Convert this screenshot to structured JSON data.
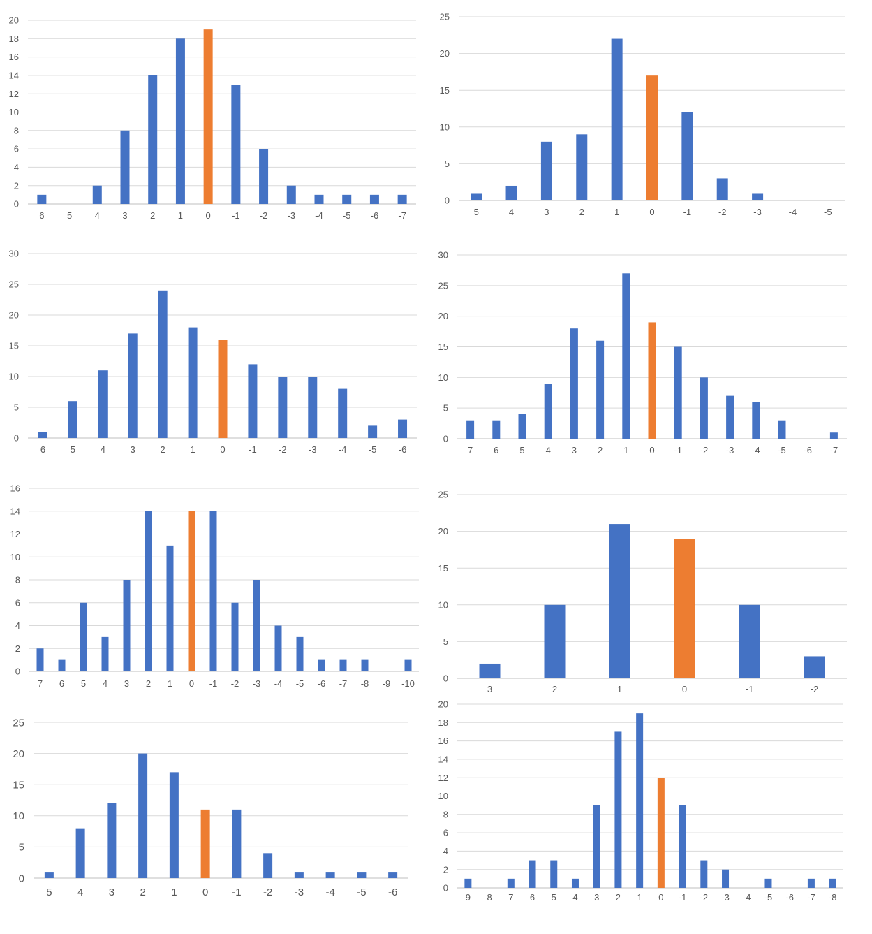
{
  "colors": {
    "normal": "#4472c4",
    "highlight": "#ed7d31"
  },
  "chart_data": [
    {
      "type": "bar",
      "categories": [
        "6",
        "5",
        "4",
        "3",
        "2",
        "1",
        "0",
        "-1",
        "-2",
        "-3",
        "-4",
        "-5",
        "-6",
        "-7"
      ],
      "values": [
        1,
        0,
        2,
        8,
        14,
        18,
        19,
        13,
        6,
        2,
        1,
        1,
        1,
        1
      ],
      "highlight_category": "0",
      "ylim": [
        0,
        20
      ],
      "yticks": [
        0,
        2,
        4,
        6,
        8,
        10,
        12,
        14,
        16,
        18,
        20
      ],
      "grid": true
    },
    {
      "type": "bar",
      "categories": [
        "5",
        "4",
        "3",
        "2",
        "1",
        "0",
        "-1",
        "-2",
        "-3",
        "-4",
        "-5"
      ],
      "values": [
        1,
        2,
        8,
        9,
        22,
        17,
        12,
        3,
        1,
        0,
        0
      ],
      "highlight_category": "0",
      "ylim": [
        0,
        25
      ],
      "yticks": [
        0,
        5,
        10,
        15,
        20,
        25
      ],
      "grid": true
    },
    {
      "type": "bar",
      "categories": [
        "6",
        "5",
        "4",
        "3",
        "2",
        "1",
        "0",
        "-1",
        "-2",
        "-3",
        "-4",
        "-5",
        "-6"
      ],
      "values": [
        1,
        6,
        11,
        17,
        24,
        18,
        16,
        12,
        10,
        10,
        8,
        2,
        3
      ],
      "highlight_category": "0",
      "ylim": [
        0,
        30
      ],
      "yticks": [
        0,
        5,
        10,
        15,
        20,
        25,
        30
      ],
      "grid": true
    },
    {
      "type": "bar",
      "categories": [
        "7",
        "6",
        "5",
        "4",
        "3",
        "2",
        "1",
        "0",
        "-1",
        "-2",
        "-3",
        "-4",
        "-5",
        "-6",
        "-7"
      ],
      "values": [
        3,
        3,
        4,
        9,
        18,
        16,
        27,
        19,
        15,
        10,
        7,
        6,
        3,
        0,
        1
      ],
      "highlight_category": "0",
      "ylim": [
        0,
        30
      ],
      "yticks": [
        0,
        5,
        10,
        15,
        20,
        25,
        30
      ],
      "grid": true
    },
    {
      "type": "bar",
      "categories": [
        "7",
        "6",
        "5",
        "4",
        "3",
        "2",
        "1",
        "0",
        "-1",
        "-2",
        "-3",
        "-4",
        "-5",
        "-6",
        "-7",
        "-8",
        "-9",
        "-10"
      ],
      "values": [
        2,
        1,
        6,
        3,
        8,
        14,
        11,
        14,
        14,
        6,
        8,
        4,
        3,
        1,
        1,
        1,
        0,
        1
      ],
      "highlight_category": "0",
      "ylim": [
        0,
        16
      ],
      "yticks": [
        0,
        2,
        4,
        6,
        8,
        10,
        12,
        14,
        16
      ],
      "grid": true
    },
    {
      "type": "bar",
      "categories": [
        "3",
        "2",
        "1",
        "0",
        "-1",
        "-2"
      ],
      "values": [
        2,
        10,
        21,
        19,
        10,
        3
      ],
      "highlight_category": "0",
      "ylim": [
        0,
        25
      ],
      "yticks": [
        0,
        5,
        10,
        15,
        20,
        25
      ],
      "grid": true
    },
    {
      "type": "bar",
      "categories": [
        "5",
        "4",
        "3",
        "2",
        "1",
        "0",
        "-1",
        "-2",
        "-3",
        "-4",
        "-5",
        "-6"
      ],
      "values": [
        1,
        8,
        12,
        20,
        17,
        11,
        11,
        4,
        1,
        1,
        1,
        1
      ],
      "highlight_category": "0",
      "ylim": [
        0,
        25
      ],
      "yticks": [
        0,
        5,
        10,
        15,
        20,
        25
      ],
      "grid": true
    },
    {
      "type": "bar",
      "categories": [
        "9",
        "8",
        "7",
        "6",
        "5",
        "4",
        "3",
        "2",
        "1",
        "0",
        "-1",
        "-2",
        "-3",
        "-4",
        "-5",
        "-6",
        "-7",
        "-8"
      ],
      "values": [
        1,
        0,
        1,
        3,
        3,
        1,
        9,
        17,
        19,
        12,
        9,
        3,
        2,
        0,
        1,
        0,
        1,
        1
      ],
      "highlight_category": "0",
      "ylim": [
        0,
        20
      ],
      "yticks": [
        0,
        2,
        4,
        6,
        8,
        10,
        12,
        14,
        16,
        18,
        20
      ],
      "grid": true
    }
  ]
}
